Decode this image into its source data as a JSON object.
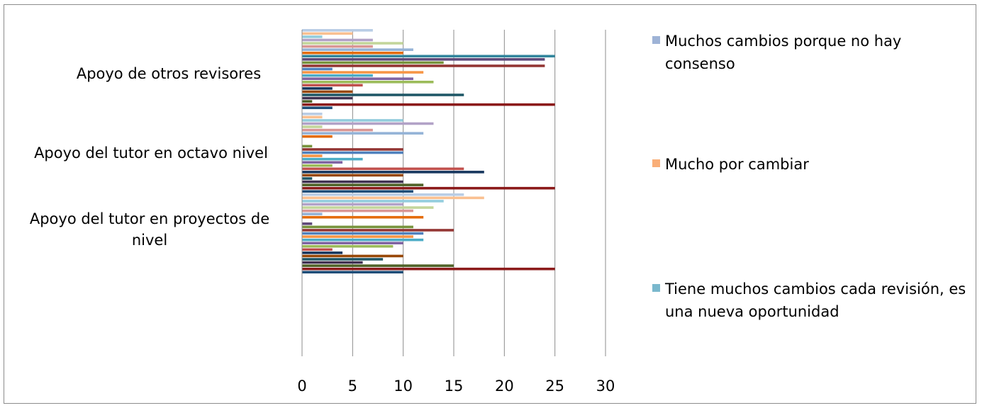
{
  "chart_data": {
    "type": "bar",
    "orientation": "horizontal",
    "categories": [
      "Apoyo de otros revisores",
      "Apoyo del tutor en octavo nivel",
      "Apoyo del tutor en proyectos de nivel"
    ],
    "xlim": [
      0,
      30
    ],
    "xticks": [
      "0",
      "5",
      "10",
      "15",
      "20",
      "25",
      "30"
    ],
    "grid": "vertical",
    "legend_position": "right",
    "legend": [
      {
        "label": "Muchos cambios porque no hay consenso",
        "color": "#9eb3d6"
      },
      {
        "label": "Mucho por cambiar",
        "color": "#f9ae78"
      },
      {
        "label": "Tiene muchos cambios cada revisión, es una nueva oportunidad",
        "color": "#7ab8cd"
      }
    ],
    "series_colors": [
      "#1f4e79",
      "#8b1a1a",
      "#4f6228",
      "#403151",
      "#205867",
      "#974706",
      "#17375e",
      "#c0504d",
      "#9bbb59",
      "#8064a2",
      "#4bacc6",
      "#f79646",
      "#4f81bd",
      "#943634",
      "#77933c",
      "#5f497a",
      "#31859c",
      "#e46c0a",
      "#95b3d7",
      "#d99694",
      "#c3d69b",
      "#b2a2c7",
      "#93cddd",
      "#fac090",
      "#b9cde5"
    ],
    "groups": [
      {
        "category": "Apoyo de otros revisores",
        "values": [
          3,
          25,
          1,
          5,
          16,
          5,
          3,
          6,
          13,
          11,
          7,
          12,
          3,
          24,
          14,
          24,
          25,
          10,
          11,
          7,
          10,
          7,
          2,
          5,
          7
        ]
      },
      {
        "category": "Apoyo del tutor en octavo nivel",
        "values": [
          11,
          25,
          12,
          10,
          1,
          10,
          18,
          16,
          3,
          4,
          6,
          2,
          10,
          10,
          1,
          0,
          0,
          3,
          12,
          7,
          2,
          13,
          10,
          2,
          2
        ]
      },
      {
        "category": "Apoyo del tutor en proyectos de nivel",
        "values": [
          10,
          25,
          15,
          6,
          8,
          10,
          4,
          3,
          9,
          10,
          12,
          11,
          12,
          15,
          11,
          1,
          0,
          12,
          2,
          11,
          13,
          10,
          14,
          18,
          16
        ]
      }
    ]
  }
}
